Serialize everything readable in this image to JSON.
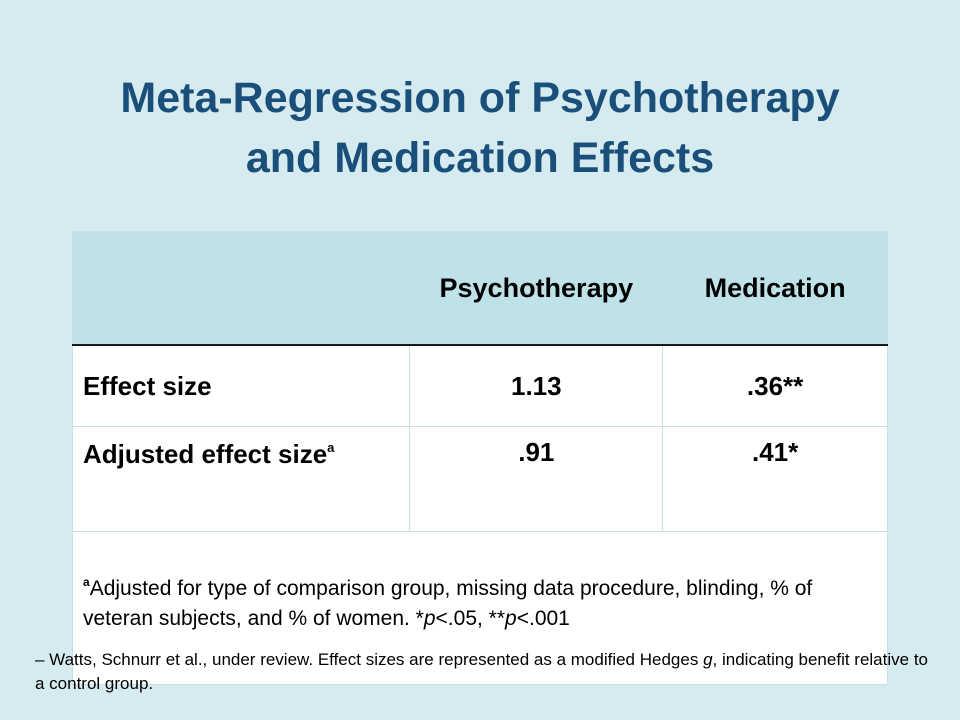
{
  "title": {
    "line1": "Meta-Regression of Psychotherapy",
    "line2": "and Medication Effects"
  },
  "table": {
    "headers": [
      "",
      "Psychotherapy",
      "Medication"
    ],
    "rows": [
      {
        "label": "Effect size",
        "label_sup": "",
        "psychotherapy": "1.13",
        "medication": ".36**"
      },
      {
        "label": "Adjusted effect size",
        "label_sup": "a",
        "psychotherapy": ".91",
        "medication": ".41*"
      }
    ],
    "note": {
      "sup": "a",
      "text_before_p1": "Adjusted for type of comparison group, missing data procedure, blinding, % of veteran subjects, and % of women. *",
      "p1": "p",
      "text_mid": "<.05, **",
      "p2": "p",
      "text_after": "<.001"
    }
  },
  "footnote": {
    "before_g": "– Watts, Schnurr et al., under review. Effect sizes are represented as a modified Hedges ",
    "g": "g",
    "after_g": ", indicating benefit relative to a control group."
  },
  "colors": {
    "background": "#d6ebef",
    "title": "#1a4f7a",
    "header_fill": "#bfe2e9"
  }
}
